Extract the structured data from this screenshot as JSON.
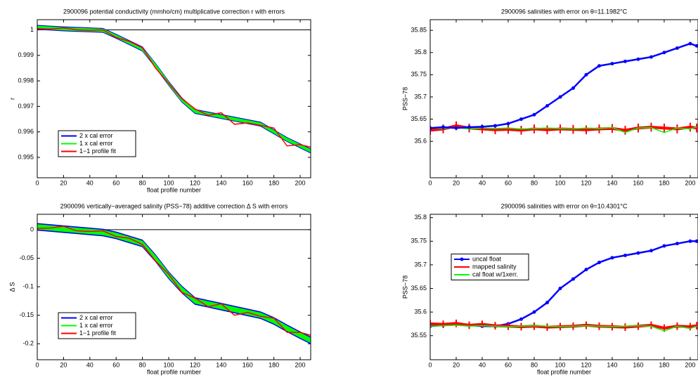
{
  "chart_data": [
    {
      "type": "line",
      "title": "2900096 potential conductivity (mmho/cm) multiplicative correction r with errors",
      "xlabel": "float profile number",
      "ylabel": "r",
      "x": [
        0,
        10,
        20,
        30,
        40,
        50,
        60,
        70,
        80,
        90,
        100,
        110,
        120,
        130,
        140,
        150,
        160,
        170,
        180,
        190,
        200,
        208
      ],
      "xlim": [
        0,
        208
      ],
      "ylim": [
        0.9942,
        1.0004
      ],
      "xticks": [
        0,
        20,
        40,
        60,
        80,
        100,
        120,
        140,
        160,
        180,
        200
      ],
      "yticks": [
        0.995,
        0.996,
        0.997,
        0.998,
        0.999,
        1
      ],
      "hline": 1,
      "legend": "lower left",
      "series": [
        {
          "name": "2 x cal error",
          "color": "#0000ff",
          "style": "band",
          "error": 8e-05,
          "values": [
            1.0001,
            1.00007,
            1.00004,
            1.00002,
            1.0,
            0.99998,
            0.99975,
            0.9995,
            0.99925,
            0.9986,
            0.9979,
            0.99725,
            0.9968,
            0.9967,
            0.9966,
            0.9965,
            0.9964,
            0.9963,
            0.996,
            0.9957,
            0.99545,
            0.99525
          ]
        },
        {
          "name": "1 x cal error",
          "color": "#00ff00",
          "style": "band",
          "error": 5e-05,
          "values": [
            1.0001,
            1.00007,
            1.00004,
            1.00002,
            1.0,
            0.99998,
            0.99975,
            0.9995,
            0.99925,
            0.9986,
            0.9979,
            0.99725,
            0.9968,
            0.9967,
            0.9966,
            0.9965,
            0.9964,
            0.9963,
            0.996,
            0.9957,
            0.99545,
            0.99525
          ]
        },
        {
          "name": "1−1 profile fit",
          "color": "#ff0000",
          "style": "line",
          "values": [
            1.00005,
            1.00003,
            1.00008,
            1.0,
            0.99998,
            1.0,
            0.9997,
            0.99955,
            0.9993,
            0.9985,
            0.9979,
            0.9973,
            0.9969,
            0.99665,
            0.99675,
            0.9963,
            0.99635,
            0.99625,
            0.99615,
            0.99545,
            0.9955,
            0.9954
          ]
        }
      ]
    },
    {
      "type": "line",
      "title": "2900096 salinities with error on θ=11.1982°C",
      "ylabel": "PSS−78",
      "x": [
        0,
        10,
        20,
        30,
        40,
        50,
        60,
        70,
        80,
        90,
        100,
        110,
        120,
        130,
        140,
        150,
        160,
        170,
        180,
        190,
        200,
        205
      ],
      "xlim": [
        0,
        206
      ],
      "ylim": [
        35.518,
        35.874
      ],
      "xticks": [
        0,
        20,
        40,
        60,
        80,
        100,
        120,
        140,
        160,
        180,
        200
      ],
      "yticks": [
        35.6,
        35.65,
        35.7,
        35.75,
        35.8,
        35.85
      ],
      "series": [
        {
          "name": "mapped salinity",
          "color": "#ff0000",
          "style": "errorbar",
          "error": 0.01,
          "values": [
            35.625,
            35.628,
            35.635,
            35.63,
            35.628,
            35.626,
            35.627,
            35.625,
            35.628,
            35.626,
            35.628,
            35.627,
            35.626,
            35.628,
            35.629,
            35.625,
            35.63,
            35.632,
            35.63,
            35.628,
            35.632,
            35.63
          ]
        },
        {
          "name": "cal float w/1xerr.",
          "color": "#00ff00",
          "style": "line",
          "values": [
            35.63,
            35.629,
            35.631,
            35.628,
            35.63,
            35.629,
            35.63,
            35.628,
            35.629,
            35.63,
            35.629,
            35.628,
            35.63,
            35.629,
            35.631,
            35.62,
            35.63,
            35.631,
            35.62,
            35.63,
            35.628,
            35.632
          ]
        },
        {
          "name": "uncal float",
          "color": "#0000ff",
          "style": "marker-line",
          "values": [
            35.63,
            35.632,
            35.63,
            35.632,
            35.633,
            35.635,
            35.64,
            35.65,
            35.66,
            35.68,
            35.7,
            35.72,
            35.75,
            35.77,
            35.775,
            35.78,
            35.785,
            35.79,
            35.8,
            35.81,
            35.82,
            35.815
          ]
        }
      ]
    },
    {
      "type": "line",
      "title": "2900096 vertically−averaged salinity (PSS−78) additive correction Δ S with errors",
      "xlabel": "float profile number",
      "ylabel": "Δ S",
      "x": [
        0,
        10,
        20,
        30,
        40,
        50,
        60,
        70,
        80,
        90,
        100,
        110,
        120,
        130,
        140,
        150,
        160,
        170,
        180,
        190,
        200,
        208
      ],
      "xlim": [
        0,
        208
      ],
      "ylim": [
        -0.228,
        0.027
      ],
      "xticks": [
        0,
        20,
        40,
        60,
        80,
        100,
        120,
        140,
        160,
        180,
        200
      ],
      "yticks": [
        -0.2,
        -0.15,
        -0.1,
        -0.05,
        0
      ],
      "hline": 0,
      "legend": "lower left",
      "series": [
        {
          "name": "2 x cal error",
          "color": "#0000ff",
          "style": "band",
          "error": 0.006,
          "values": [
            0.005,
            0.003,
            0.001,
            -0.001,
            -0.003,
            -0.005,
            -0.01,
            -0.017,
            -0.024,
            -0.05,
            -0.08,
            -0.105,
            -0.125,
            -0.13,
            -0.135,
            -0.14,
            -0.145,
            -0.15,
            -0.16,
            -0.173,
            -0.185,
            -0.194
          ]
        },
        {
          "name": "1 x cal error",
          "color": "#00ff00",
          "style": "band",
          "error": 0.004,
          "values": [
            0.005,
            0.003,
            0.001,
            -0.001,
            -0.003,
            -0.005,
            -0.01,
            -0.017,
            -0.024,
            -0.05,
            -0.08,
            -0.105,
            -0.125,
            -0.13,
            -0.135,
            -0.14,
            -0.145,
            -0.15,
            -0.16,
            -0.173,
            -0.185,
            -0.194
          ]
        },
        {
          "name": "1−1 profile fit",
          "color": "#ff0000",
          "style": "line",
          "values": [
            0.002,
            0.003,
            0.006,
            -0.002,
            -0.003,
            -0.002,
            -0.012,
            -0.015,
            -0.026,
            -0.055,
            -0.078,
            -0.11,
            -0.12,
            -0.135,
            -0.13,
            -0.15,
            -0.145,
            -0.152,
            -0.155,
            -0.18,
            -0.18,
            -0.185
          ]
        }
      ]
    },
    {
      "type": "line",
      "title": "2900096 salinities with error on θ=10.4301°C",
      "xlabel": "float profile number",
      "ylabel": "PSS−78",
      "x": [
        0,
        10,
        20,
        30,
        40,
        50,
        60,
        70,
        80,
        90,
        100,
        110,
        120,
        130,
        140,
        150,
        160,
        170,
        180,
        190,
        200,
        205
      ],
      "xlim": [
        0,
        206
      ],
      "ylim": [
        35.499,
        35.807
      ],
      "xticks": [
        0,
        20,
        40,
        60,
        80,
        100,
        120,
        140,
        160,
        180,
        200
      ],
      "yticks": [
        35.55,
        35.6,
        35.65,
        35.7,
        35.75,
        35.8
      ],
      "legend": "center left",
      "series": [
        {
          "name": "uncal float",
          "color": "#0000ff",
          "style": "marker-line",
          "values": [
            35.57,
            35.572,
            35.575,
            35.572,
            35.57,
            35.57,
            35.575,
            35.585,
            35.6,
            35.62,
            35.65,
            35.67,
            35.69,
            35.705,
            35.715,
            35.72,
            35.725,
            35.73,
            35.74,
            35.745,
            35.75,
            35.75
          ]
        },
        {
          "name": "mapped salinity",
          "color": "#ff0000",
          "style": "errorbar",
          "error": 0.008,
          "values": [
            35.575,
            35.574,
            35.576,
            35.572,
            35.574,
            35.571,
            35.57,
            35.569,
            35.57,
            35.568,
            35.569,
            35.57,
            35.572,
            35.57,
            35.569,
            35.568,
            35.57,
            35.572,
            35.566,
            35.57,
            35.569,
            35.571
          ]
        },
        {
          "name": "cal float w/1xerr.",
          "color": "#00ff00",
          "style": "line",
          "values": [
            35.57,
            35.571,
            35.572,
            35.57,
            35.571,
            35.57,
            35.569,
            35.57,
            35.571,
            35.57,
            35.569,
            35.57,
            35.571,
            35.57,
            35.569,
            35.57,
            35.571,
            35.57,
            35.56,
            35.57,
            35.565,
            35.57
          ]
        }
      ]
    }
  ]
}
